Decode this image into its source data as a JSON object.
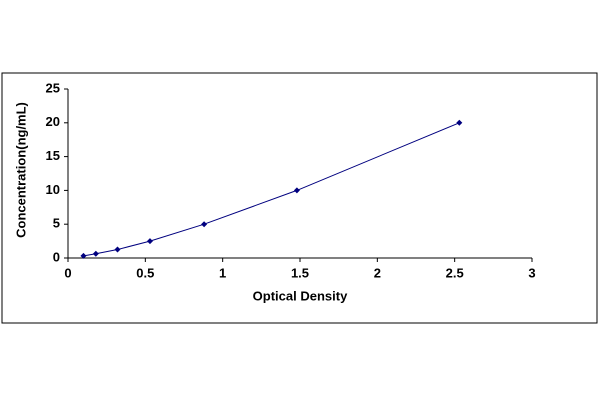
{
  "chart_data": {
    "type": "scatter",
    "x_label": "Optical Density",
    "y_label": "Concentration(ng/mL)",
    "series": [
      {
        "color": "#00007f",
        "x": [
          0.1,
          0.18,
          0.32,
          0.53,
          0.88,
          1.48,
          2.53
        ],
        "values": [
          0.312,
          0.625,
          1.25,
          2.5,
          5,
          10,
          20
        ]
      }
    ],
    "xlim": [
      0,
      3
    ],
    "xticks": [
      0,
      0.5,
      1,
      1.5,
      2,
      2.5,
      3
    ],
    "ylim": [
      0,
      25
    ],
    "yticks": [
      0,
      5,
      10,
      15,
      20,
      25
    ],
    "connect": true
  }
}
